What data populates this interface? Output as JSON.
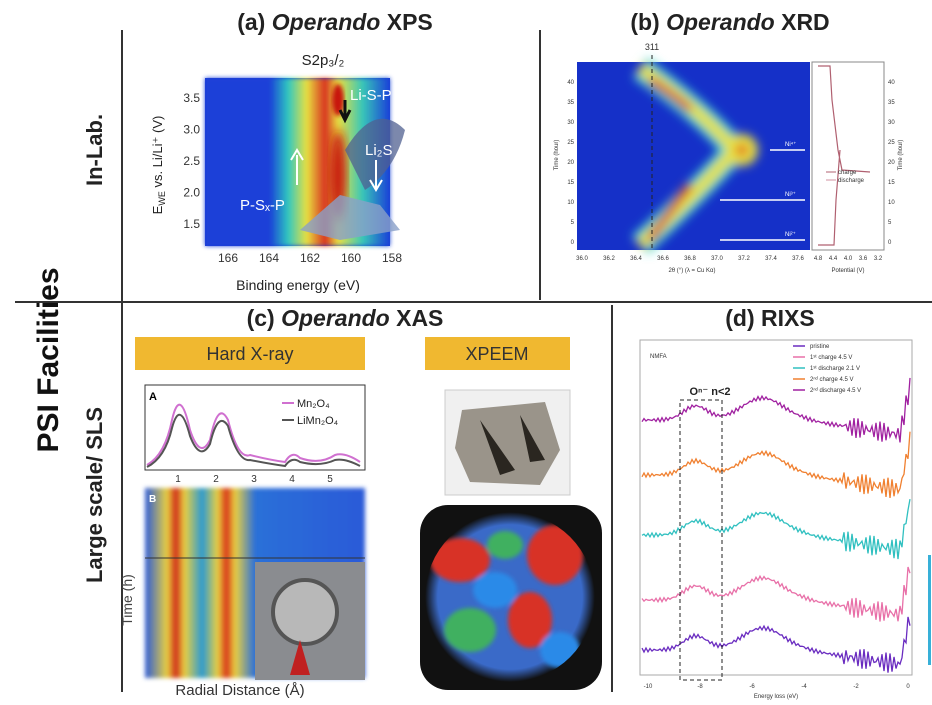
{
  "side_labels": {
    "main": "PSI Facilities",
    "top": "In-Lab.",
    "bottom": "Large scale/ SLS"
  },
  "panel_a": {
    "label": "(a)",
    "emphasis": "Operando",
    "name": "XPS",
    "header": "S2p₃/₂",
    "y_label": {
      "symbol": "E",
      "subscript": "WE",
      "rest": " vs. Li/Li⁺ (V)"
    },
    "y_ticks": [
      "3.5",
      "3.0",
      "2.5",
      "2.0",
      "1.5"
    ],
    "x_ticks": [
      "166",
      "164",
      "162",
      "160",
      "158"
    ],
    "x_label": "Binding energy (eV)",
    "annotations": [
      "Li-S-P",
      "Li₂S",
      "P-Sₓ-P"
    ]
  },
  "panel_b": {
    "label": "(b)",
    "emphasis": "Operando",
    "name": "XRD",
    "peak_label": "311",
    "x_ticks": [
      "36.0",
      "36.2",
      "36.4",
      "36.6",
      "36.8",
      "37.0",
      "37.2",
      "37.4",
      "37.6"
    ],
    "y_ticks": [
      "40",
      "35",
      "30",
      "25",
      "20",
      "15",
      "10",
      "5",
      "0"
    ],
    "x_label": "2θ (°) (λ = Cu Kα)",
    "y_label": "Time (hour)",
    "side_x_ticks": [
      "4.8",
      "4.4",
      "4.0",
      "3.6",
      "3.2"
    ],
    "side_x_label": "Potential (V)",
    "legend": [
      "charge",
      "discharge"
    ],
    "annotations": [
      "Ni⁴⁺",
      "Ni³⁺",
      "Ni²⁺"
    ]
  },
  "panel_c": {
    "label": "(c)",
    "emphasis": "Operando",
    "name": "XAS",
    "boxes": [
      "Hard X-ray",
      "XPEEM"
    ],
    "plot_a_label": "A",
    "legend": [
      "Mn₂O₄",
      "LiMn₂O₄"
    ],
    "x_ticks": [
      "1",
      "2",
      "3",
      "4",
      "5"
    ],
    "plot_b_label": "B",
    "y_label": "Time (h)",
    "x_label": "Radial Distance (Å)"
  },
  "panel_d": {
    "label": "(d)",
    "name": "RIXS",
    "tag": "NMFA",
    "box_label": "Oⁿ⁻ n<2",
    "legend": [
      "pristine",
      "1ˢᵗ charge 4.5 V",
      "1ˢᵗ discharge 2.1 V",
      "2ⁿᵈ charge 4.5 V",
      "2ⁿᵈ discharge 4.5 V"
    ],
    "x_ticks": [
      "-10",
      "-8",
      "-6",
      "-4",
      "-2",
      "0"
    ],
    "x_label": "Energy loss (eV)"
  }
}
